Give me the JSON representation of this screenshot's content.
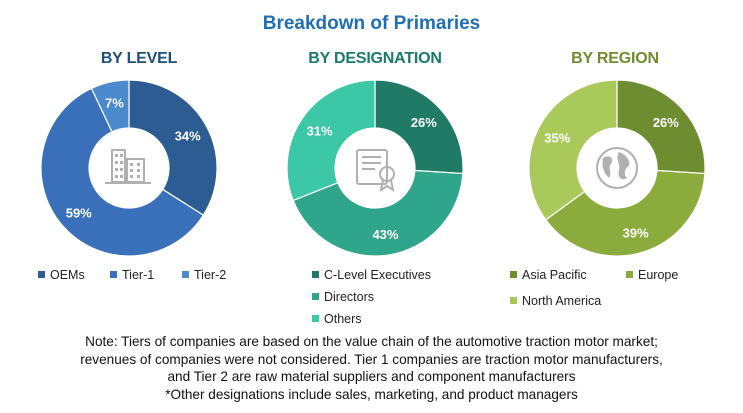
{
  "title": "Breakdown of Primaries",
  "chart_data": [
    {
      "type": "pie",
      "title": "BY LEVEL",
      "title_color": "#1f4e79",
      "hole": "donut",
      "center_icon": "buildings-icon",
      "categories": [
        "OEMs",
        "Tier-1",
        "Tier-2"
      ],
      "values": [
        34,
        59,
        7
      ],
      "value_labels": [
        "34%",
        "59%",
        "7%"
      ],
      "colors": [
        "#2c5c91",
        "#3a70b9",
        "#4b8bcd"
      ],
      "label_colors": [
        "#ffffff",
        "#ffffff",
        "#ffffff"
      ]
    },
    {
      "type": "pie",
      "title": "BY DESIGNATION",
      "title_color": "#1a7a6b",
      "hole": "donut",
      "center_icon": "certificate-icon",
      "categories": [
        "C-Level Executives",
        "Directors",
        "Others"
      ],
      "values": [
        26,
        43,
        31
      ],
      "value_labels": [
        "26%",
        "43%",
        "31%"
      ],
      "colors": [
        "#1f7a66",
        "#2fa58b",
        "#3cc7a6"
      ],
      "label_colors": [
        "#ffffff",
        "#ffffff",
        "#ffffff"
      ]
    },
    {
      "type": "pie",
      "title": "BY REGION",
      "title_color": "#6f8d2e",
      "hole": "donut",
      "center_icon": "globe-icon",
      "categories": [
        "Asia Pacific",
        "Europe",
        "North America"
      ],
      "values": [
        26,
        39,
        35
      ],
      "value_labels": [
        "26%",
        "39%",
        "35%"
      ],
      "colors": [
        "#6e8c30",
        "#8bab3c",
        "#a9c95a"
      ],
      "label_colors": [
        "#ffffff",
        "#ffffff",
        "#ffffff"
      ]
    }
  ],
  "note": {
    "line1": "Note: Tiers of companies are based on the value chain of the automotive traction motor market;",
    "line2": "revenues of companies were not considered. Tier 1 companies are traction motor manufacturers,",
    "line3": "and Tier 2 are raw material suppliers and component manufacturers",
    "line4": "*Other designations include sales, marketing, and product managers"
  }
}
